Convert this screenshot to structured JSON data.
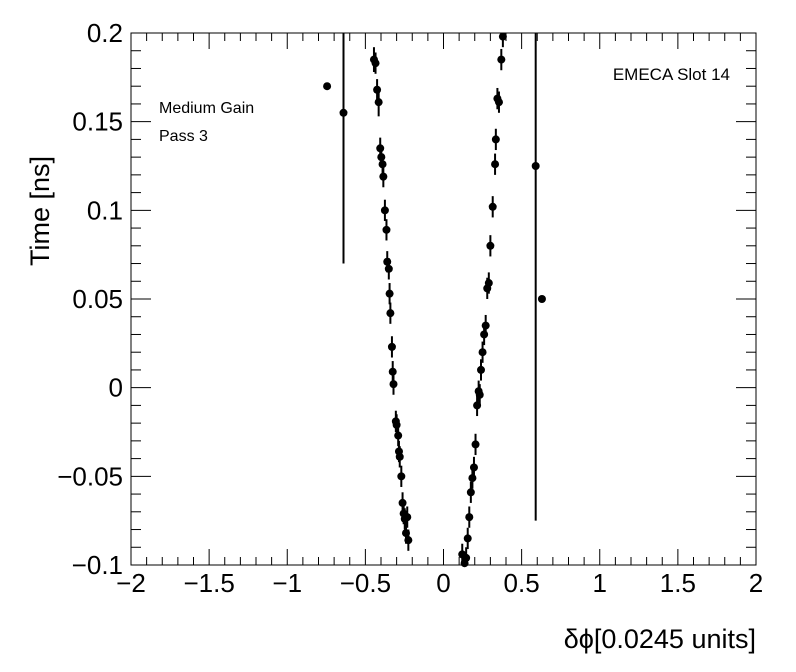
{
  "chart_data": {
    "type": "scatter",
    "title": "",
    "xlabel": "δϕ[0.0245 units]",
    "ylabel": "Time [ns]",
    "xlim": [
      -2,
      2
    ],
    "ylim": [
      -0.1,
      0.2
    ],
    "grid": false,
    "x_ticks": [
      -2,
      -1.5,
      -1,
      -0.5,
      0,
      0.5,
      1,
      1.5,
      2
    ],
    "x_tick_labels": [
      "−2",
      "−1.5",
      "−1",
      "−0.5",
      "0",
      "0.5",
      "1",
      "1.5",
      "2"
    ],
    "y_ticks": [
      -0.1,
      -0.05,
      0,
      0.05,
      0.1,
      0.15,
      0.2
    ],
    "y_tick_labels": [
      "−0.1",
      "−0.05",
      "0",
      "0.05",
      "0.1",
      "0.15",
      "0.2"
    ],
    "annotations": {
      "gain": "Medium Gain",
      "pass": "Pass 3",
      "slot": "EMECA Slot 14"
    },
    "points": [
      {
        "x": -0.745,
        "y": 0.17,
        "err": 0.0
      },
      {
        "x": -0.64,
        "y": 0.155,
        "err": 0.085
      },
      {
        "x": -0.445,
        "y": 0.185,
        "err": 0.007
      },
      {
        "x": -0.435,
        "y": 0.183,
        "err": 0.006
      },
      {
        "x": -0.425,
        "y": 0.168,
        "err": 0.006
      },
      {
        "x": -0.415,
        "y": 0.161,
        "err": 0.008
      },
      {
        "x": -0.405,
        "y": 0.135,
        "err": 0.006
      },
      {
        "x": -0.398,
        "y": 0.13,
        "err": 0.006
      },
      {
        "x": -0.39,
        "y": 0.126,
        "err": 0.006
      },
      {
        "x": -0.385,
        "y": 0.119,
        "err": 0.006
      },
      {
        "x": -0.375,
        "y": 0.1,
        "err": 0.006
      },
      {
        "x": -0.365,
        "y": 0.089,
        "err": 0.006
      },
      {
        "x": -0.36,
        "y": 0.071,
        "err": 0.006
      },
      {
        "x": -0.35,
        "y": 0.067,
        "err": 0.006
      },
      {
        "x": -0.345,
        "y": 0.053,
        "err": 0.006
      },
      {
        "x": -0.34,
        "y": 0.042,
        "err": 0.006
      },
      {
        "x": -0.33,
        "y": 0.023,
        "err": 0.006
      },
      {
        "x": -0.325,
        "y": 0.009,
        "err": 0.006
      },
      {
        "x": -0.32,
        "y": 0.002,
        "err": 0.006
      },
      {
        "x": -0.305,
        "y": -0.019,
        "err": 0.006
      },
      {
        "x": -0.3,
        "y": -0.021,
        "err": 0.006
      },
      {
        "x": -0.29,
        "y": -0.027,
        "err": 0.006
      },
      {
        "x": -0.285,
        "y": -0.036,
        "err": 0.006
      },
      {
        "x": -0.28,
        "y": -0.039,
        "err": 0.006
      },
      {
        "x": -0.27,
        "y": -0.05,
        "err": 0.006
      },
      {
        "x": -0.262,
        "y": -0.065,
        "err": 0.006
      },
      {
        "x": -0.255,
        "y": -0.071,
        "err": 0.006
      },
      {
        "x": -0.248,
        "y": -0.074,
        "err": 0.006
      },
      {
        "x": -0.24,
        "y": -0.082,
        "err": 0.006
      },
      {
        "x": -0.232,
        "y": -0.073,
        "err": 0.006
      },
      {
        "x": -0.225,
        "y": -0.086,
        "err": 0.006
      },
      {
        "x": 0.12,
        "y": -0.094,
        "err": 0.006
      },
      {
        "x": 0.135,
        "y": -0.099,
        "err": 0.006
      },
      {
        "x": 0.145,
        "y": -0.096,
        "err": 0.006
      },
      {
        "x": 0.155,
        "y": -0.085,
        "err": 0.006
      },
      {
        "x": 0.165,
        "y": -0.073,
        "err": 0.006
      },
      {
        "x": 0.175,
        "y": -0.059,
        "err": 0.006
      },
      {
        "x": 0.185,
        "y": -0.051,
        "err": 0.006
      },
      {
        "x": 0.195,
        "y": -0.045,
        "err": 0.006
      },
      {
        "x": 0.205,
        "y": -0.032,
        "err": 0.006
      },
      {
        "x": 0.215,
        "y": -0.01,
        "err": 0.006
      },
      {
        "x": 0.225,
        "y": -0.002,
        "err": 0.006
      },
      {
        "x": 0.232,
        "y": -0.004,
        "err": 0.006
      },
      {
        "x": 0.24,
        "y": 0.01,
        "err": 0.006
      },
      {
        "x": 0.25,
        "y": 0.02,
        "err": 0.006
      },
      {
        "x": 0.26,
        "y": 0.03,
        "err": 0.006
      },
      {
        "x": 0.27,
        "y": 0.035,
        "err": 0.006
      },
      {
        "x": 0.28,
        "y": 0.056,
        "err": 0.006
      },
      {
        "x": 0.29,
        "y": 0.059,
        "err": 0.006
      },
      {
        "x": 0.3,
        "y": 0.08,
        "err": 0.006
      },
      {
        "x": 0.315,
        "y": 0.102,
        "err": 0.006
      },
      {
        "x": 0.33,
        "y": 0.126,
        "err": 0.006
      },
      {
        "x": 0.335,
        "y": 0.14,
        "err": 0.006
      },
      {
        "x": 0.345,
        "y": 0.163,
        "err": 0.006
      },
      {
        "x": 0.355,
        "y": 0.161,
        "err": 0.006
      },
      {
        "x": 0.37,
        "y": 0.185,
        "err": 0.006
      },
      {
        "x": 0.38,
        "y": 0.198,
        "err": 0.006
      },
      {
        "x": 0.59,
        "y": 0.125,
        "err": 0.2
      },
      {
        "x": 0.63,
        "y": 0.05,
        "err": 0.0
      }
    ]
  }
}
